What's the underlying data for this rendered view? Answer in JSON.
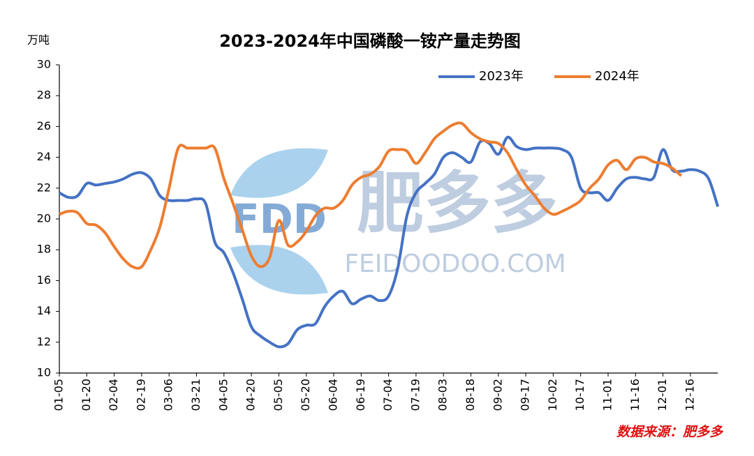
{
  "chart_data": {
    "type": "line",
    "title": "2023-2024年中国磷酸一铵产量走势图",
    "y_axis_label": "万吨",
    "source": "数据来源：肥多多",
    "watermark": {
      "logo": "FDD",
      "brand": "肥多多",
      "url": "FEIDOODOO.COM"
    },
    "categories": [
      "01-05",
      null,
      null,
      "01-20",
      null,
      null,
      "02-04",
      null,
      null,
      "02-19",
      null,
      null,
      "03-06",
      null,
      null,
      "03-21",
      null,
      null,
      "04-05",
      null,
      null,
      "04-20",
      null,
      null,
      "05-05",
      null,
      null,
      "05-20",
      null,
      null,
      "06-04",
      null,
      null,
      "06-19",
      null,
      null,
      "07-04",
      null,
      null,
      "07-19",
      null,
      null,
      "08-03",
      null,
      null,
      "08-18",
      null,
      null,
      "09-02",
      null,
      null,
      "09-17",
      null,
      null,
      "10-02",
      null,
      null,
      "10-17",
      null,
      null,
      "11-01",
      null,
      null,
      "11-16",
      null,
      null,
      "12-01",
      null,
      null,
      "12-16",
      null,
      null,
      null
    ],
    "series": [
      {
        "name": "2023年",
        "color": "#4472c4",
        "values": [
          21.7,
          21.4,
          21.5,
          22.3,
          22.2,
          22.3,
          22.4,
          22.6,
          22.9,
          23.0,
          22.6,
          21.5,
          21.2,
          21.2,
          21.2,
          21.3,
          21.0,
          18.5,
          17.8,
          16.5,
          14.8,
          13.0,
          12.4,
          12.0,
          11.7,
          11.9,
          12.8,
          13.1,
          13.2,
          14.3,
          15.0,
          15.3,
          14.5,
          14.8,
          15.0,
          14.7,
          15.0,
          16.8,
          20.2,
          21.7,
          22.3,
          22.9,
          24.0,
          24.3,
          24.0,
          23.7,
          25.0,
          24.9,
          24.2,
          25.3,
          24.7,
          24.5,
          24.6,
          24.6,
          24.6,
          24.5,
          24.0,
          22.0,
          21.7,
          21.7,
          21.2,
          22.0,
          22.6,
          22.7,
          22.6,
          22.7,
          24.5,
          23.2,
          23.1,
          23.2,
          23.1,
          22.6,
          20.8
        ]
      },
      {
        "name": "2024年",
        "color": "#ed7d31",
        "values": [
          20.3,
          20.5,
          20.4,
          19.7,
          19.6,
          19.1,
          18.2,
          17.4,
          16.9,
          16.9,
          18.0,
          19.5,
          22.0,
          24.6,
          24.6,
          24.6,
          24.6,
          24.6,
          22.6,
          21.0,
          19.3,
          17.6,
          16.9,
          17.5,
          19.9,
          18.3,
          18.5,
          19.2,
          20.2,
          20.7,
          20.7,
          21.2,
          22.2,
          22.7,
          22.9,
          23.4,
          24.4,
          24.5,
          24.4,
          23.6,
          24.3,
          25.2,
          25.7,
          26.1,
          26.2,
          25.6,
          25.2,
          25.0,
          24.9,
          24.3,
          23.2,
          22.2,
          21.5,
          20.7,
          20.3,
          20.5,
          20.8,
          21.2,
          22.0,
          22.6,
          23.5,
          23.8,
          23.2,
          23.9,
          24.0,
          23.7,
          23.6,
          23.3,
          22.8,
          null,
          null,
          null,
          null
        ]
      }
    ],
    "ylim": [
      10,
      30
    ],
    "yticks": [
      10,
      12,
      14,
      16,
      18,
      20,
      22,
      24,
      26,
      28,
      30
    ],
    "grid": false,
    "legend": "top-right"
  }
}
